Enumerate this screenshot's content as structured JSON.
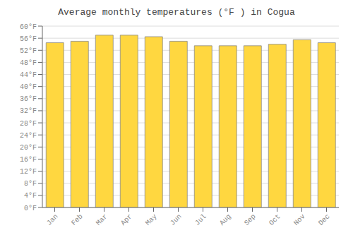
{
  "chart_data": {
    "type": "bar",
    "title": "Average monthly temperatures (°F ) in Cogua",
    "categories": [
      "Jan",
      "Feb",
      "Mar",
      "Apr",
      "May",
      "Jun",
      "Jul",
      "Aug",
      "Sep",
      "Oct",
      "Nov",
      "Dec"
    ],
    "values": [
      54.5,
      55.0,
      57.0,
      57.0,
      56.5,
      55.0,
      53.5,
      53.5,
      53.5,
      54.0,
      55.5,
      54.5
    ],
    "color": "#FFD740",
    "ylim": [
      0,
      60
    ],
    "yticks": [
      {
        "value": 0,
        "label": "0°F"
      },
      {
        "value": 4,
        "label": "4°F"
      },
      {
        "value": 8,
        "label": "8°F"
      },
      {
        "value": 12,
        "label": "12°F"
      },
      {
        "value": 16,
        "label": "16°F"
      },
      {
        "value": 20,
        "label": "20°F"
      },
      {
        "value": 24,
        "label": "24°F"
      },
      {
        "value": 28,
        "label": "28°F"
      },
      {
        "value": 32,
        "label": "32°F"
      },
      {
        "value": 36,
        "label": "36°F"
      },
      {
        "value": 40,
        "label": "40°F"
      },
      {
        "value": 44,
        "label": "44°F"
      },
      {
        "value": 48,
        "label": "48°F"
      },
      {
        "value": 52,
        "label": "52°F"
      },
      {
        "value": 56,
        "label": "56°F"
      },
      {
        "value": 60,
        "label": "60°F"
      }
    ],
    "grid": true
  }
}
